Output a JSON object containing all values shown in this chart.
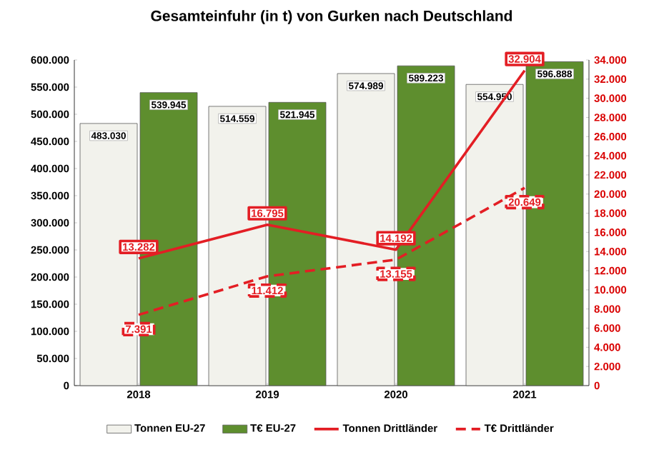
{
  "chart_data": {
    "type": "bar",
    "title": "Gesamteinfuhr (in t) von Gurken nach Deutschland",
    "categories": [
      "2018",
      "2019",
      "2020",
      "2021"
    ],
    "series": [
      {
        "name": "Tonnen EU-27",
        "color": "#f2f2ec",
        "values": [
          483030,
          514559,
          574989,
          554950
        ],
        "value_labels": [
          "483.030",
          "514.559",
          "574.989",
          "554.950"
        ]
      },
      {
        "name": "T€ EU-27",
        "color": "#5e8e2e",
        "values": [
          539945,
          521945,
          589223,
          596888
        ],
        "value_labels": [
          "539.945",
          "521.945",
          "589.223",
          "596.888"
        ]
      },
      {
        "name": "Tonnen Drittländer",
        "type": "line",
        "axis": "y2",
        "line_style": "solid",
        "color": "#e31e24",
        "values": [
          13282,
          16795,
          14192,
          32904
        ],
        "value_labels": [
          "13.282",
          "16.795",
          "14.192",
          "32.904"
        ]
      },
      {
        "name": "T€ Drittländer",
        "type": "line",
        "axis": "y2",
        "line_style": "dashed",
        "color": "#e31e24",
        "values": [
          7391,
          11412,
          13155,
          20649
        ],
        "value_labels": [
          "7.391",
          "11.412",
          "13.155",
          "20.649"
        ]
      }
    ],
    "ylim": [
      0,
      600000
    ],
    "yticks": [
      0,
      {
        "value": 50000,
        "label": "50.000"
      },
      {
        "value": 100000,
        "label": "100.000"
      },
      {
        "value": 150000,
        "label": "150.000"
      },
      {
        "value": 200000,
        "label": "200.000"
      },
      {
        "value": 250000,
        "label": "250.000"
      },
      {
        "value": 300000,
        "label": "300.000"
      },
      {
        "value": 350000,
        "label": "350.000"
      },
      {
        "value": 400000,
        "label": "400.000"
      },
      {
        "value": 450000,
        "label": "450.000"
      },
      {
        "value": 500000,
        "label": "500.000"
      },
      {
        "value": 550000,
        "label": "550.000"
      },
      {
        "value": 600000,
        "label": "600.000"
      }
    ],
    "y2lim": [
      0,
      34000
    ],
    "y2ticks": [
      0,
      {
        "value": 2000,
        "label": "2.000"
      },
      {
        "value": 4000,
        "label": "4.000"
      },
      {
        "value": 6000,
        "label": "6.000"
      },
      {
        "value": 8000,
        "label": "8.000"
      },
      {
        "value": 10000,
        "label": "10.000"
      },
      {
        "value": 12000,
        "label": "12.000"
      },
      {
        "value": 14000,
        "label": "14.000"
      },
      {
        "value": 16000,
        "label": "16.000"
      },
      {
        "value": 18000,
        "label": "18.000"
      },
      {
        "value": 20000,
        "label": "20.000"
      },
      {
        "value": 22000,
        "label": "22.000"
      },
      {
        "value": 24000,
        "label": "24.000"
      },
      {
        "value": 26000,
        "label": "26.000"
      },
      {
        "value": 28000,
        "label": "28.000"
      },
      {
        "value": 30000,
        "label": "30.000"
      },
      {
        "value": 32000,
        "label": "32.000"
      },
      {
        "value": 34000,
        "label": "34.000"
      }
    ],
    "legend": "bottom",
    "marker": "none"
  }
}
